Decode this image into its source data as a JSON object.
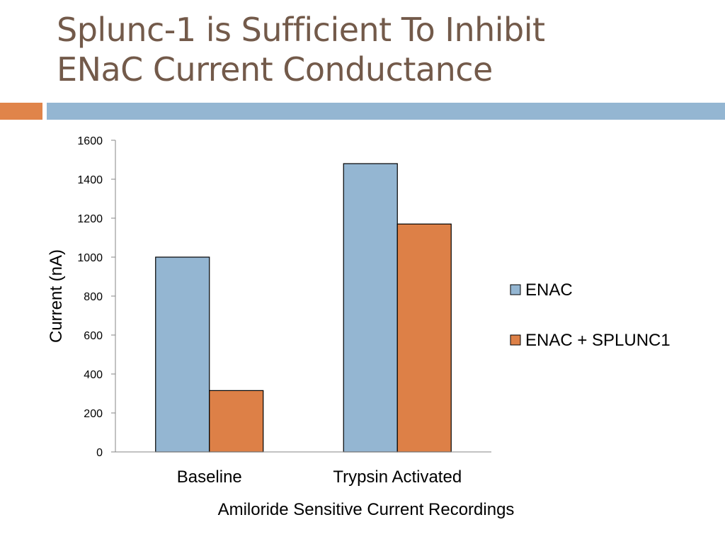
{
  "slide": {
    "title_line1": "Splunc-1 is Sufficient To Inhibit",
    "title_line2": "ENaC Current Conductance"
  },
  "colors": {
    "title": "#735a4a",
    "accent_orange": "#e0844a",
    "accent_blue": "#94b6d2",
    "series_enac": "#94b6d2",
    "series_splunc": "#dd8047",
    "axis": "#868686",
    "bar_stroke": "#000000"
  },
  "chart_data": {
    "type": "bar",
    "categories": [
      "Baseline",
      "Trypsin Activated"
    ],
    "series": [
      {
        "name": "ENAC",
        "values": [
          1000,
          1480
        ]
      },
      {
        "name": "ENAC + SPLUNC1",
        "values": [
          315,
          1170
        ]
      }
    ],
    "title": "",
    "xlabel": "Amiloride Sensitive Current Recordings",
    "ylabel": "Current (nA)",
    "ylim": [
      0,
      1600
    ],
    "yticks": [
      0,
      200,
      400,
      600,
      800,
      1000,
      1200,
      1400,
      1600
    ],
    "grid": false,
    "legend": "right"
  }
}
